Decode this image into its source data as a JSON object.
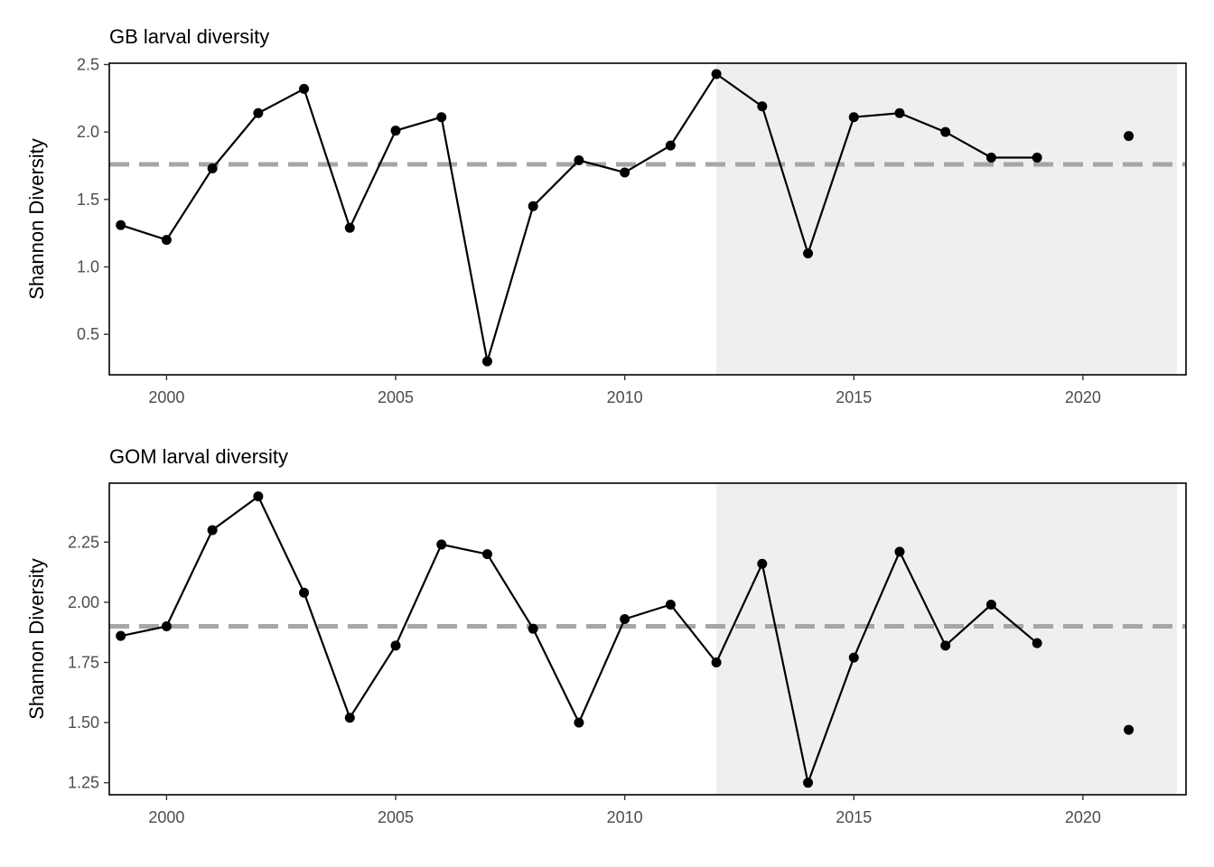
{
  "chart_data": [
    {
      "type": "line",
      "title": "GB larval diversity",
      "xlabel": "",
      "ylabel": "Shannon Diversity",
      "xlim": [
        1998.75,
        2022.25
      ],
      "ylim": [
        0.2,
        2.51
      ],
      "xticks": [
        2000,
        2005,
        2010,
        2015,
        2020
      ],
      "yticks": [
        0.5,
        1.0,
        1.5,
        2.0,
        2.5
      ],
      "ytick_labels": [
        "0.5",
        "1.0",
        "1.5",
        "2.0",
        "2.5"
      ],
      "grid": false,
      "mean_line": 1.76,
      "shaded_from": 2012,
      "series": [
        {
          "x": [
            1999,
            2000,
            2001,
            2002,
            2003,
            2004,
            2005,
            2006,
            2007,
            2008,
            2009,
            2010,
            2011,
            2012,
            2013,
            2014,
            2015,
            2016,
            2017,
            2018,
            2019
          ],
          "y": [
            1.31,
            1.2,
            1.73,
            2.14,
            2.32,
            1.29,
            2.01,
            2.11,
            0.3,
            1.45,
            1.79,
            1.7,
            1.9,
            2.43,
            2.19,
            1.1,
            2.11,
            2.14,
            2.0,
            1.81,
            1.81
          ]
        }
      ],
      "extra_points": {
        "x": [
          2021
        ],
        "y": [
          1.97
        ]
      }
    },
    {
      "type": "line",
      "title": "GOM larval diversity",
      "xlabel": "",
      "ylabel": "Shannon Diversity",
      "xlim": [
        1998.75,
        2022.25
      ],
      "ylim": [
        1.2,
        2.495
      ],
      "xticks": [
        2000,
        2005,
        2010,
        2015,
        2020
      ],
      "yticks": [
        1.25,
        1.5,
        1.75,
        2.0,
        2.25
      ],
      "ytick_labels": [
        "1.25",
        "1.50",
        "1.75",
        "2.00",
        "2.25"
      ],
      "grid": false,
      "mean_line": 1.9,
      "shaded_from": 2012,
      "series": [
        {
          "x": [
            1999,
            2000,
            2001,
            2002,
            2003,
            2004,
            2005,
            2006,
            2007,
            2008,
            2009,
            2010,
            2011,
            2012,
            2013,
            2014,
            2015,
            2016,
            2017,
            2018,
            2019
          ],
          "y": [
            1.86,
            1.9,
            2.3,
            2.44,
            2.04,
            1.52,
            1.82,
            2.24,
            2.2,
            1.89,
            1.5,
            1.93,
            1.99,
            1.75,
            2.16,
            1.25,
            1.77,
            2.21,
            1.82,
            1.99,
            1.83
          ]
        }
      ],
      "extra_points": {
        "x": [
          2021
        ],
        "y": [
          1.47
        ]
      }
    }
  ]
}
